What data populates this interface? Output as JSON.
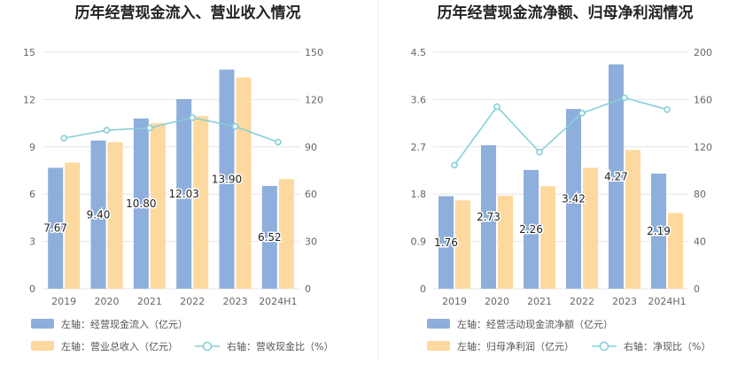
{
  "colors": {
    "inflow_bar": "#8eaedb",
    "revenue_bar": "#fdd99f",
    "ratio_line": "#86d0d8",
    "grid": "#e6e6e6",
    "divider": "#eeeeee"
  },
  "chart_data": [
    {
      "type": "bar",
      "title": "历年经营现金流入、营业收入情况",
      "categories": [
        "2019",
        "2020",
        "2021",
        "2022",
        "2023",
        "2024H1"
      ],
      "left_axis": {
        "ylim": [
          0,
          15
        ],
        "ticks": [
          "0",
          "3",
          "6",
          "9",
          "12",
          "15"
        ]
      },
      "right_axis": {
        "ylim": [
          0,
          150
        ],
        "ticks": [
          "0",
          "30",
          "60",
          "90",
          "120",
          "150"
        ]
      },
      "grid": true,
      "legend_position": "bottom-left",
      "series": [
        {
          "name": "左轴：经营现金流入（亿元）",
          "kind": "bar",
          "axis": "left",
          "values": [
            7.67,
            9.4,
            10.8,
            12.03,
            13.9,
            6.52
          ],
          "labels": [
            "7.67",
            "9.40",
            "10.80",
            "12.03",
            "13.90",
            "6.52"
          ]
        },
        {
          "name": "左轴：营业总收入（亿元）",
          "kind": "bar",
          "axis": "left",
          "values": [
            8.0,
            9.3,
            10.5,
            10.95,
            13.4,
            6.95
          ]
        },
        {
          "name": "右轴：营收现金比（%）",
          "kind": "line",
          "axis": "right",
          "values": [
            95.5,
            100.5,
            102.0,
            108.5,
            103.0,
            93.0
          ]
        }
      ]
    },
    {
      "type": "bar",
      "title": "历年经营现金流净额、归母净利润情况",
      "categories": [
        "2019",
        "2020",
        "2021",
        "2022",
        "2023",
        "2024H1"
      ],
      "left_axis": {
        "ylim": [
          0,
          4.5
        ],
        "ticks": [
          "0",
          "0.9",
          "1.8",
          "2.7",
          "3.6",
          "4.5"
        ]
      },
      "right_axis": {
        "ylim": [
          0,
          200
        ],
        "ticks": [
          "0",
          "40",
          "80",
          "120",
          "160",
          "200"
        ]
      },
      "grid": true,
      "legend_position": "bottom-left",
      "series": [
        {
          "name": "左轴：经营活动现金流净额（亿元）",
          "kind": "bar",
          "axis": "left",
          "values": [
            1.76,
            2.73,
            2.26,
            3.42,
            4.27,
            2.19
          ],
          "labels": [
            "1.76",
            "2.73",
            "2.26",
            "3.42",
            "4.27",
            "2.19"
          ]
        },
        {
          "name": "左轴：归母净利润（亿元）",
          "kind": "bar",
          "axis": "left",
          "values": [
            1.68,
            1.77,
            1.95,
            2.3,
            2.64,
            1.44
          ]
        },
        {
          "name": "右轴：净现比（%）",
          "kind": "line",
          "axis": "right",
          "values": [
            104.5,
            154.0,
            115.5,
            148.5,
            161.5,
            151.5
          ]
        }
      ]
    }
  ]
}
